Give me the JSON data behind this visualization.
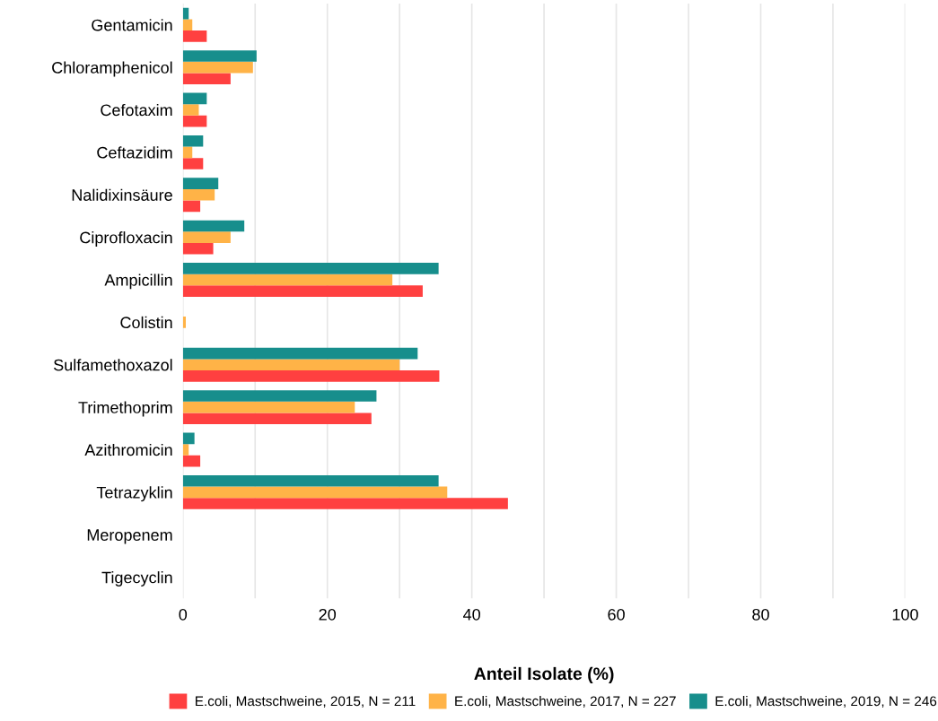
{
  "chart_data": {
    "type": "bar",
    "orientation": "horizontal",
    "xlabel": "Anteil Isolate (%)",
    "categories": [
      "Gentamicin",
      "Chloramphenicol",
      "Cefotaxim",
      "Ceftazidim",
      "Nalidixinsäure",
      "Ciprofloxacin",
      "Ampicillin",
      "Colistin",
      "Sulfamethoxazol",
      "Trimethoprim",
      "Azithromicin",
      "Tetrazyklin",
      "Meropenem",
      "Tigecyclin"
    ],
    "series": [
      {
        "name": "E.coli, Mastschweine, 2015, N = 211",
        "color": "#ff4040",
        "values": [
          3.3,
          6.6,
          3.3,
          2.8,
          2.4,
          4.2,
          33.2,
          0,
          35.5,
          26.1,
          2.4,
          45.0,
          0,
          0
        ]
      },
      {
        "name": "E.coli, Mastschweine, 2017, N = 227",
        "color": "#ffb347",
        "values": [
          1.3,
          9.7,
          2.2,
          1.3,
          4.4,
          6.6,
          29.0,
          0.4,
          30.0,
          23.8,
          0.8,
          36.6,
          0,
          0
        ]
      },
      {
        "name": "E.coli, Mastschweine, 2019, N = 246",
        "color": "#178e8c",
        "values": [
          0.8,
          10.2,
          3.3,
          2.8,
          4.9,
          8.5,
          35.4,
          0,
          32.5,
          26.8,
          1.6,
          35.4,
          0,
          0
        ]
      }
    ],
    "xlim": [
      0,
      100
    ],
    "xticks": [
      0,
      {
        "value": 10,
        "label": null
      },
      20,
      {
        "value": 30,
        "label": null
      },
      40,
      {
        "value": 50,
        "label": null
      },
      60,
      {
        "value": 70,
        "label": null
      },
      80,
      {
        "value": 90,
        "label": null
      },
      100
    ],
    "grid": "x",
    "legend": "bottom"
  }
}
